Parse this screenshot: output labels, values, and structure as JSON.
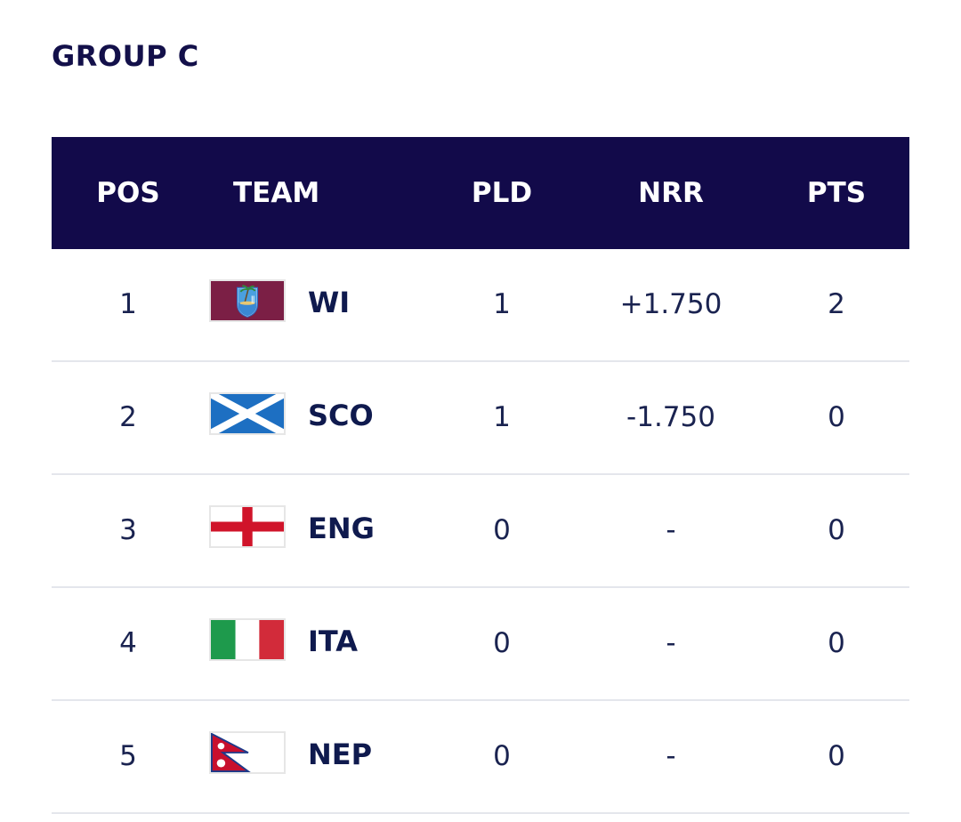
{
  "group": {
    "title": "GROUP C"
  },
  "table": {
    "headers": {
      "pos": "POS",
      "team": "TEAM",
      "pld": "PLD",
      "nrr": "NRR",
      "pts": "PTS"
    },
    "rows": [
      {
        "pos": "1",
        "team": "WI",
        "flag": "west-indies-flag",
        "pld": "1",
        "nrr": "+1.750",
        "pts": "2"
      },
      {
        "pos": "2",
        "team": "SCO",
        "flag": "scotland-flag",
        "pld": "1",
        "nrr": "-1.750",
        "pts": "0"
      },
      {
        "pos": "3",
        "team": "ENG",
        "flag": "england-flag",
        "pld": "0",
        "nrr": "-",
        "pts": "0"
      },
      {
        "pos": "4",
        "team": "ITA",
        "flag": "italy-flag",
        "pld": "0",
        "nrr": "-",
        "pts": "0"
      },
      {
        "pos": "5",
        "team": "NEP",
        "flag": "nepal-flag",
        "pld": "0",
        "nrr": "-",
        "pts": "0"
      }
    ]
  },
  "colors": {
    "header_bg": "#120a4a",
    "title_text": "#13104a",
    "row_divider": "#e4e6ec"
  }
}
